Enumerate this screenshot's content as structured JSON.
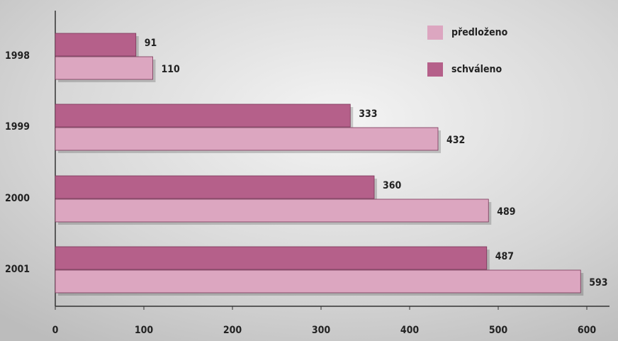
{
  "chart_data": {
    "type": "barh",
    "categories": [
      "1998",
      "1999",
      "2000",
      "2001"
    ],
    "series": [
      {
        "name": "předloženo",
        "color": "#dca6c0",
        "values": [
          110,
          432,
          489,
          593
        ]
      },
      {
        "name": "schváleno",
        "color": "#b5608a",
        "values": [
          91,
          333,
          360,
          487
        ]
      }
    ],
    "xlim": [
      0,
      600
    ],
    "xticks": [
      0,
      100,
      200,
      300,
      400,
      500,
      600
    ],
    "legend": "top-right"
  }
}
